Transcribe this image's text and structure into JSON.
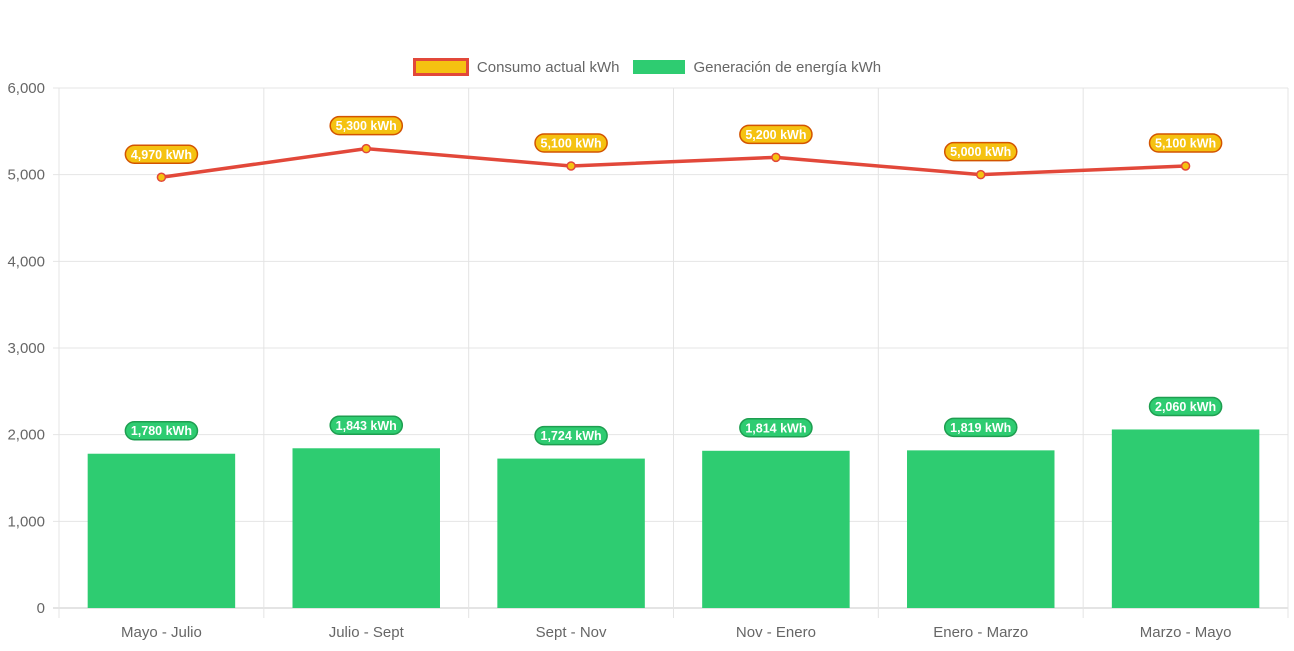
{
  "chart_data": {
    "type": "bar",
    "categories": [
      "Mayo - Julio",
      "Julio - Sept",
      "Sept - Nov",
      "Nov - Enero",
      "Enero - Marzo",
      "Marzo - Mayo"
    ],
    "series": [
      {
        "name": "Consumo actual kWh",
        "type": "line",
        "values": [
          4970,
          5300,
          5100,
          5200,
          5000,
          5100
        ],
        "labels": [
          "4,970 kWh",
          "5,300 kWh",
          "5,100 kWh",
          "5,200 kWh",
          "5,000 kWh",
          "5,100 kWh"
        ],
        "color": "#e2483a",
        "point_color": "#f5c211"
      },
      {
        "name": "Generación de energía kWh",
        "type": "bar",
        "values": [
          1780,
          1843,
          1724,
          1814,
          1819,
          2060
        ],
        "labels": [
          "1,780 kWh",
          "1,843 kWh",
          "1,724 kWh",
          "1,814 kWh",
          "1,819 kWh",
          "2,060 kWh"
        ],
        "color": "#2ecc71"
      }
    ],
    "ylim": [
      0,
      6000
    ],
    "yticks": [
      0,
      1000,
      2000,
      3000,
      4000,
      5000,
      6000
    ],
    "ytick_labels": [
      "0",
      "1,000",
      "2,000",
      "3,000",
      "4,000",
      "5,000",
      "6,000"
    ],
    "grid": true,
    "legend": "top-center"
  }
}
